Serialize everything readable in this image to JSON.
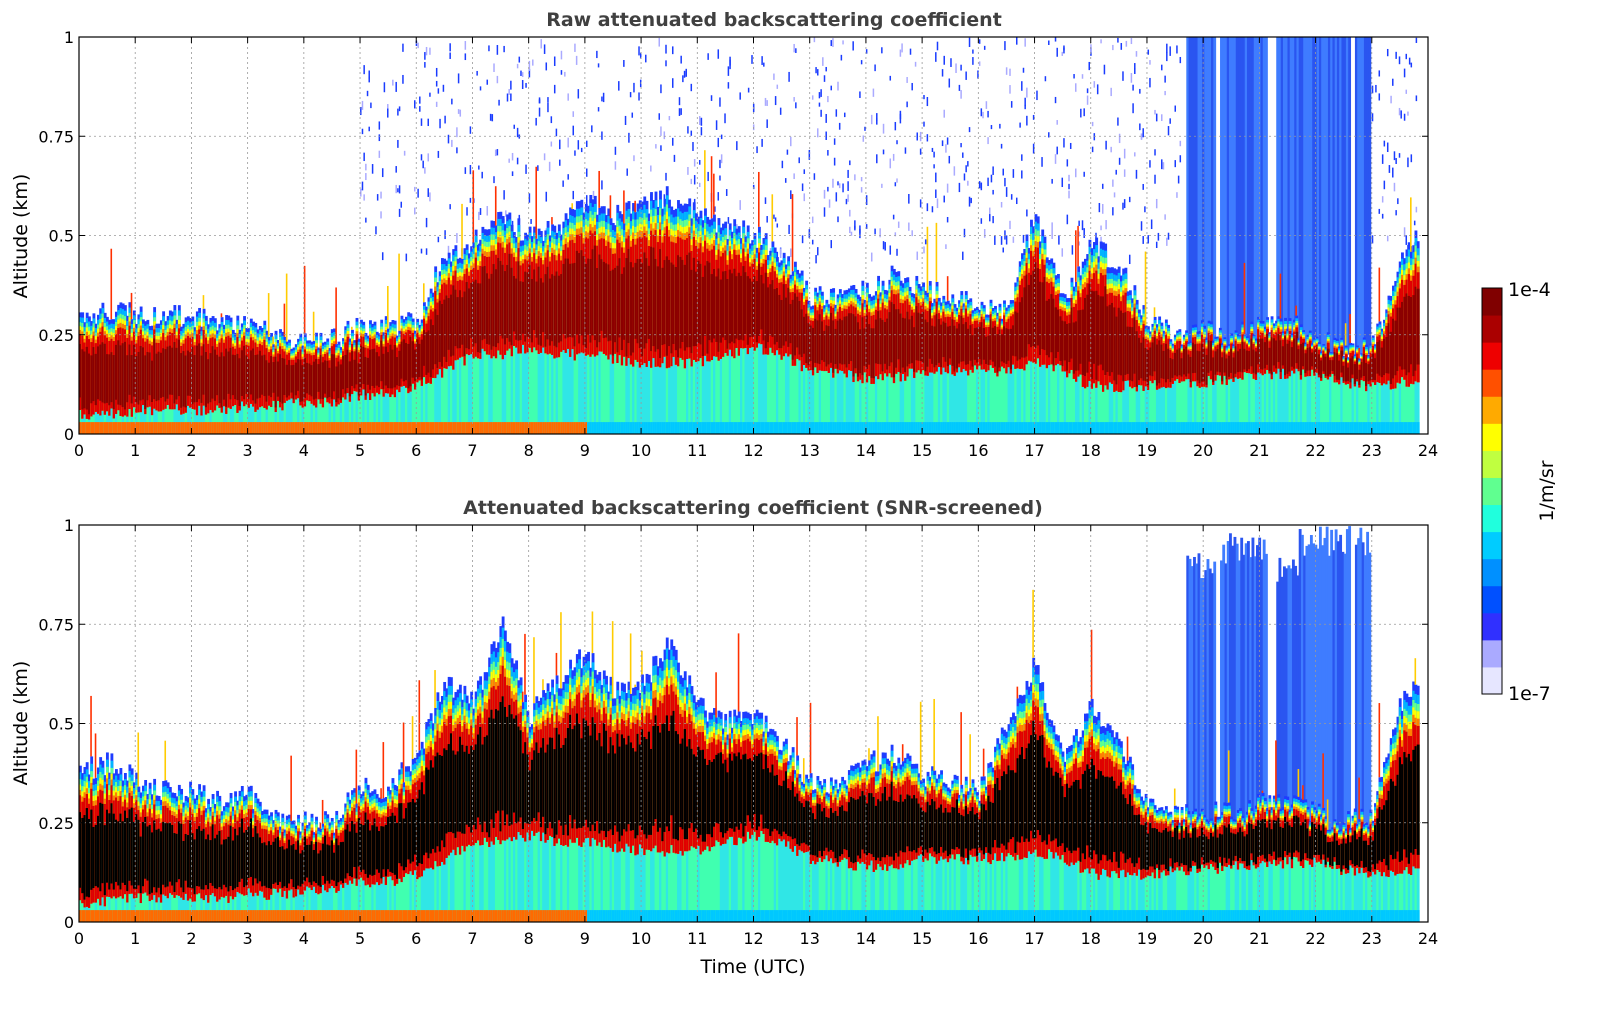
{
  "chart_data": [
    {
      "type": "heatmap",
      "title": "Raw attenuated backscattering coefficient",
      "xlabel": "",
      "ylabel": "Altitude (km)",
      "xlim": [
        0,
        24
      ],
      "ylim": [
        0,
        1
      ],
      "x_ticks": [
        "0",
        "1",
        "2",
        "3",
        "4",
        "5",
        "6",
        "7",
        "8",
        "9",
        "10",
        "11",
        "12",
        "13",
        "14",
        "15",
        "16",
        "17",
        "18",
        "19",
        "20",
        "21",
        "22",
        "23",
        "24"
      ],
      "y_ticks": [
        "0",
        "0.25",
        "0.5",
        "0.75",
        "1"
      ],
      "grid": true,
      "screened": false,
      "data_end_hour": 23.8,
      "layer": {
        "hours": [
          0,
          0.5,
          1,
          1.5,
          2,
          2.5,
          3,
          3.5,
          4,
          4.5,
          5,
          5.5,
          6,
          6.5,
          7,
          7.5,
          8,
          8.5,
          9,
          9.5,
          10,
          10.5,
          11,
          11.5,
          12,
          12.5,
          13,
          13.5,
          14,
          14.5,
          15,
          15.5,
          16,
          16.5,
          17,
          17.5,
          18,
          18.5,
          19,
          19.5,
          20,
          20.5,
          21,
          21.5,
          22,
          22.5,
          23,
          23.5,
          23.8
        ],
        "top_km": [
          0.3,
          0.31,
          0.3,
          0.3,
          0.29,
          0.28,
          0.28,
          0.24,
          0.23,
          0.24,
          0.27,
          0.27,
          0.29,
          0.45,
          0.48,
          0.55,
          0.5,
          0.52,
          0.58,
          0.55,
          0.57,
          0.6,
          0.55,
          0.52,
          0.5,
          0.45,
          0.35,
          0.34,
          0.36,
          0.4,
          0.36,
          0.35,
          0.32,
          0.31,
          0.55,
          0.33,
          0.48,
          0.42,
          0.28,
          0.25,
          0.26,
          0.25,
          0.27,
          0.28,
          0.24,
          0.22,
          0.22,
          0.45,
          0.5
        ],
        "bottom_km": [
          0.05,
          0.05,
          0.06,
          0.06,
          0.06,
          0.06,
          0.07,
          0.07,
          0.08,
          0.08,
          0.1,
          0.1,
          0.12,
          0.16,
          0.2,
          0.2,
          0.22,
          0.2,
          0.2,
          0.19,
          0.18,
          0.18,
          0.18,
          0.2,
          0.22,
          0.2,
          0.16,
          0.15,
          0.14,
          0.14,
          0.16,
          0.16,
          0.16,
          0.16,
          0.18,
          0.16,
          0.12,
          0.12,
          0.12,
          0.13,
          0.13,
          0.14,
          0.15,
          0.15,
          0.15,
          0.13,
          0.12,
          0.13,
          0.13
        ]
      },
      "ice_cloud": [
        {
          "start_hour": 19.7,
          "end_hour": 20.2,
          "top_km": 1.0
        },
        {
          "start_hour": 20.3,
          "end_hour": 21.1,
          "top_km": 1.0
        },
        {
          "start_hour": 21.3,
          "end_hour": 21.7,
          "top_km": 1.0
        },
        {
          "start_hour": 21.7,
          "end_hour": 22.6,
          "top_km": 1.0
        },
        {
          "start_hour": 22.7,
          "end_hour": 22.95,
          "top_km": 1.0
        }
      ]
    },
    {
      "type": "heatmap",
      "title": "Attenuated backscattering coefficient (SNR-screened)",
      "xlabel": "Time (UTC)",
      "ylabel": "Altitude (km)",
      "xlim": [
        0,
        24
      ],
      "ylim": [
        0,
        1
      ],
      "x_ticks": [
        "0",
        "1",
        "2",
        "3",
        "4",
        "5",
        "6",
        "7",
        "8",
        "9",
        "10",
        "11",
        "12",
        "13",
        "14",
        "15",
        "16",
        "17",
        "18",
        "19",
        "20",
        "21",
        "22",
        "23",
        "24"
      ],
      "y_ticks": [
        "0",
        "0.25",
        "0.5",
        "0.75",
        "1"
      ],
      "grid": true,
      "screened": true,
      "data_end_hour": 23.8,
      "layer": {
        "hours": [
          0,
          0.5,
          1,
          1.5,
          2,
          2.5,
          3,
          3.5,
          4,
          4.5,
          5,
          5.5,
          6,
          6.5,
          7,
          7.5,
          8,
          8.5,
          9,
          9.5,
          10,
          10.5,
          11,
          11.5,
          12,
          12.5,
          13,
          13.5,
          14,
          14.5,
          15,
          15.5,
          16,
          16.5,
          17,
          17.5,
          18,
          18.5,
          19,
          19.5,
          20,
          20.5,
          21,
          21.5,
          22,
          22.5,
          23,
          23.5,
          23.8
        ],
        "top_km": [
          0.38,
          0.4,
          0.36,
          0.33,
          0.33,
          0.3,
          0.32,
          0.26,
          0.25,
          0.25,
          0.34,
          0.34,
          0.42,
          0.6,
          0.55,
          0.75,
          0.52,
          0.6,
          0.68,
          0.58,
          0.6,
          0.7,
          0.55,
          0.5,
          0.52,
          0.45,
          0.35,
          0.34,
          0.4,
          0.42,
          0.37,
          0.35,
          0.33,
          0.5,
          0.65,
          0.4,
          0.55,
          0.45,
          0.3,
          0.28,
          0.28,
          0.27,
          0.3,
          0.3,
          0.27,
          0.25,
          0.27,
          0.55,
          0.6
        ],
        "bottom_km": [
          0.05,
          0.05,
          0.06,
          0.06,
          0.06,
          0.06,
          0.07,
          0.07,
          0.08,
          0.08,
          0.1,
          0.1,
          0.12,
          0.16,
          0.2,
          0.2,
          0.22,
          0.2,
          0.2,
          0.19,
          0.18,
          0.18,
          0.18,
          0.2,
          0.22,
          0.2,
          0.16,
          0.15,
          0.14,
          0.14,
          0.16,
          0.16,
          0.16,
          0.16,
          0.18,
          0.16,
          0.12,
          0.12,
          0.12,
          0.13,
          0.13,
          0.14,
          0.15,
          0.15,
          0.15,
          0.13,
          0.12,
          0.13,
          0.13
        ]
      },
      "ice_cloud": [
        {
          "start_hour": 19.7,
          "end_hour": 20.2,
          "top_km": 0.93
        },
        {
          "start_hour": 20.3,
          "end_hour": 21.1,
          "top_km": 0.98
        },
        {
          "start_hour": 21.3,
          "end_hour": 21.7,
          "top_km": 0.92
        },
        {
          "start_hour": 21.7,
          "end_hour": 22.6,
          "top_km": 1.0
        },
        {
          "start_hour": 22.7,
          "end_hour": 22.95,
          "top_km": 1.0
        }
      ]
    }
  ],
  "colorbar": {
    "label": "1/m/sr",
    "max_label": "1e-4",
    "min_label": "1e-7",
    "scale": "log",
    "range": [
      1e-07,
      0.0001
    ],
    "colors": [
      "#e6e6ff",
      "#aaaaff",
      "#3030ff",
      "#0050ff",
      "#0090ff",
      "#00ccff",
      "#20ffdd",
      "#60ff90",
      "#c0ff40",
      "#ffff00",
      "#ffaa00",
      "#ff5000",
      "#ee0000",
      "#aa0000",
      "#800000"
    ],
    "screened_saturation_color": "#000000"
  }
}
